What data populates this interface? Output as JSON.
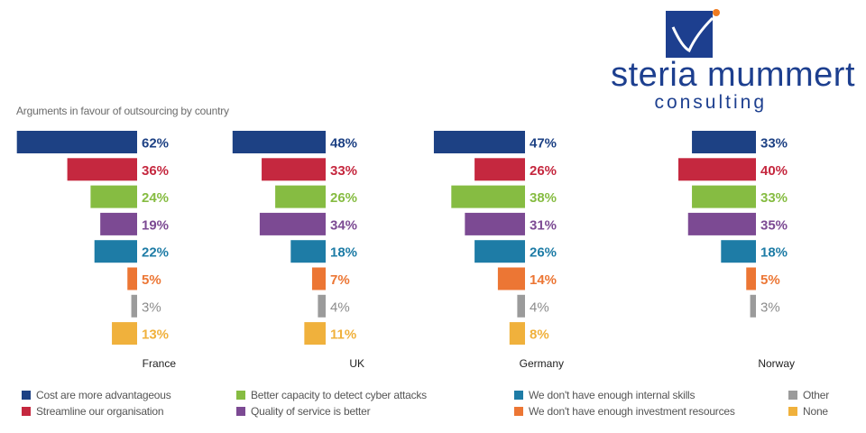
{
  "brand": {
    "name_line1": "steria mummert",
    "name_line2": "consulting",
    "logo_color": "#1d3f8f",
    "accent_color": "#ef7b21"
  },
  "chart_data": {
    "type": "bar",
    "title": "Arguments in favour of outsourcing by country",
    "categories": [
      "France",
      "UK",
      "Germany",
      "Norway"
    ],
    "series": [
      {
        "name": "Cost are more advantageous",
        "color": "#1d4184",
        "values": [
          62,
          48,
          47,
          33
        ]
      },
      {
        "name": "Streamline our organisation",
        "color": "#c5283f",
        "values": [
          36,
          33,
          26,
          40
        ]
      },
      {
        "name": "Better capacity to detect cyber attacks",
        "color": "#86bc42",
        "values": [
          24,
          26,
          38,
          33
        ]
      },
      {
        "name": "Quality of service is better",
        "color": "#7c4a93",
        "values": [
          19,
          34,
          31,
          35
        ]
      },
      {
        "name": "We don't have enough internal skills",
        "color": "#1e7ca6",
        "values": [
          22,
          18,
          26,
          18
        ]
      },
      {
        "name": "We don't have enough investment resources",
        "color": "#ec7634",
        "values": [
          5,
          7,
          14,
          5
        ]
      },
      {
        "name": "Other",
        "color": "#9b9b9b",
        "values": [
          3,
          4,
          4,
          3
        ]
      },
      {
        "name": "None",
        "color": "#f0b13c",
        "values": [
          13,
          11,
          8,
          0
        ]
      }
    ],
    "value_suffix": "%",
    "legend_position": "bottom"
  }
}
